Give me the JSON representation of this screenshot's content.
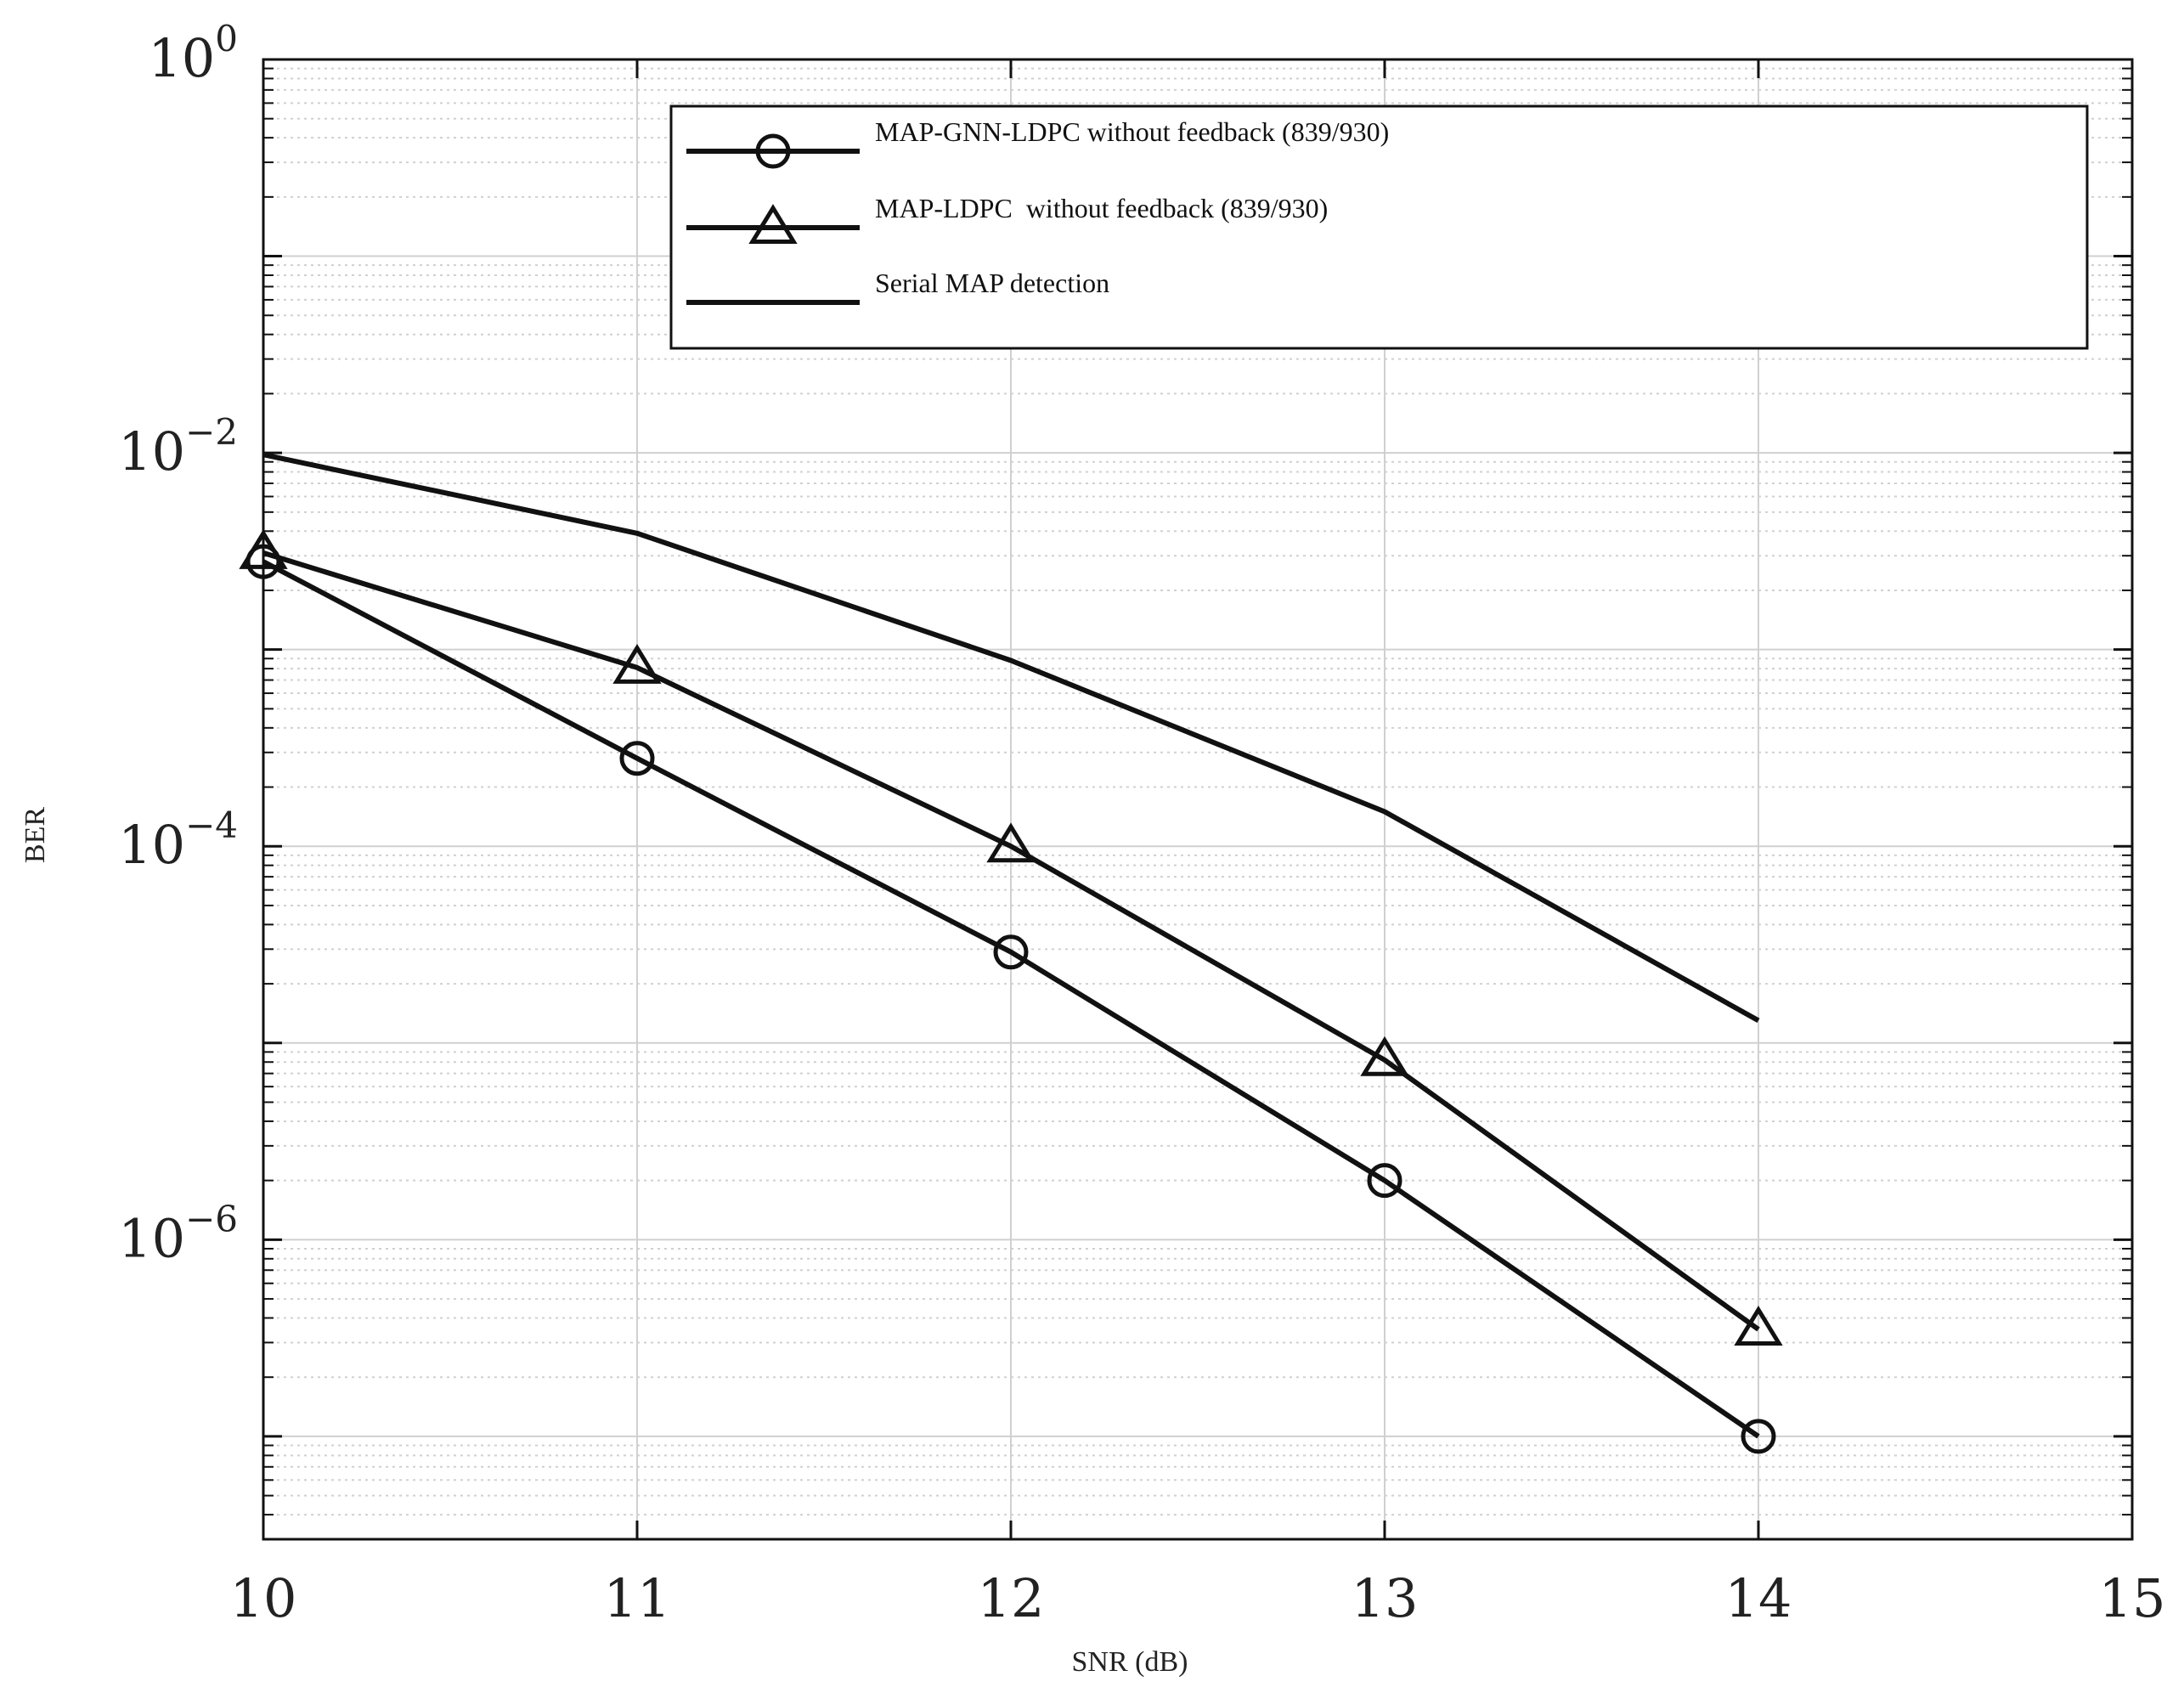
{
  "chart_data": {
    "type": "line",
    "xlabel": "SNR (dB)",
    "ylabel": "BER",
    "xlim": [
      10,
      15
    ],
    "ylim": [
      3e-08,
      1
    ],
    "yscale": "log",
    "xticks": [
      "10",
      "11",
      "12",
      "13",
      "14",
      "15"
    ],
    "yticks": [
      {
        "base": "10",
        "exp": "0",
        "value": 1
      },
      {
        "base": "10",
        "exp": "−2",
        "value": 0.01
      },
      {
        "base": "10",
        "exp": "−4",
        "value": 0.0001
      },
      {
        "base": "10",
        "exp": "−6",
        "value": 1e-06
      }
    ],
    "grid": true,
    "legend_position": "top-right",
    "colors": {
      "line": "#111111",
      "grid": "#d0d0d0",
      "axis": "#111111"
    },
    "series": [
      {
        "name": "MAP-GNN-LDPC without feedback (839/930)",
        "marker": "circle",
        "x": [
          10,
          11,
          12,
          13,
          14
        ],
        "y": [
          0.0028,
          0.00028,
          2.9e-05,
          2e-06,
          1e-07
        ]
      },
      {
        "name": "MAP-LDPC  without feedback (839/930)",
        "marker": "triangle",
        "x": [
          10,
          11,
          12,
          13,
          14
        ],
        "y": [
          0.0031,
          0.00081,
          0.0001,
          8.2e-06,
          3.5e-07
        ]
      },
      {
        "name": "Serial MAP detection",
        "marker": "none",
        "x": [
          10,
          11,
          12,
          13,
          14
        ],
        "y": [
          0.0098,
          0.0039,
          0.00088,
          0.00015,
          1.3e-05
        ]
      }
    ]
  }
}
